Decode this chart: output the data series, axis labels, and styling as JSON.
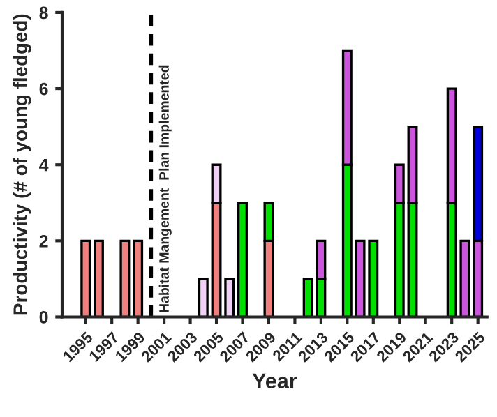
{
  "chart_data": {
    "type": "bar",
    "stacked": true,
    "xlabel": "Year",
    "ylabel": "Productivity (# of young fledged)",
    "x": [
      1995,
      1996,
      1997,
      1998,
      1999,
      2000,
      2001,
      2002,
      2003,
      2004,
      2005,
      2006,
      2007,
      2008,
      2009,
      2010,
      2011,
      2012,
      2013,
      2014,
      2015,
      2016,
      2017,
      2018,
      2019,
      2020,
      2021,
      2022,
      2023,
      2024,
      2025
    ],
    "series": [
      {
        "color": "#f08080",
        "values": [
          2,
          2,
          null,
          2,
          2,
          null,
          null,
          null,
          null,
          null,
          3,
          null,
          null,
          null,
          2,
          null,
          null,
          null,
          null,
          null,
          null,
          null,
          null,
          null,
          null,
          null,
          null,
          null,
          null,
          null,
          null
        ]
      },
      {
        "color": "#f0d0f4",
        "values": [
          null,
          null,
          null,
          null,
          null,
          null,
          null,
          null,
          null,
          1,
          1,
          1,
          null,
          null,
          null,
          null,
          null,
          null,
          null,
          null,
          null,
          null,
          null,
          null,
          null,
          null,
          null,
          null,
          null,
          null,
          null
        ]
      },
      {
        "color": "#00e000",
        "values": [
          null,
          null,
          null,
          null,
          null,
          null,
          null,
          null,
          null,
          null,
          null,
          null,
          3,
          null,
          1,
          null,
          null,
          1,
          1,
          null,
          4,
          null,
          2,
          null,
          3,
          3,
          null,
          null,
          3,
          null,
          null
        ]
      },
      {
        "color": "#cc55dd",
        "values": [
          null,
          null,
          null,
          null,
          null,
          null,
          null,
          null,
          null,
          null,
          null,
          null,
          null,
          null,
          null,
          null,
          null,
          null,
          1,
          null,
          3,
          2,
          null,
          null,
          1,
          2,
          null,
          null,
          3,
          2,
          2
        ]
      },
      {
        "color": "#0000dd",
        "values": [
          null,
          null,
          null,
          null,
          null,
          null,
          null,
          null,
          null,
          null,
          null,
          null,
          null,
          null,
          null,
          null,
          null,
          null,
          null,
          null,
          null,
          null,
          null,
          null,
          null,
          null,
          null,
          null,
          null,
          null,
          3
        ]
      }
    ],
    "xlim": [
      1993.2,
      2025.7
    ],
    "xticks": [
      1995,
      1997,
      1999,
      2001,
      2003,
      2005,
      2007,
      2009,
      2011,
      2013,
      2015,
      2017,
      2019,
      2021,
      2023,
      2025
    ],
    "ylim": [
      0,
      8
    ],
    "yticks": [
      0,
      2,
      4,
      6,
      8
    ],
    "ref_lines": [
      {
        "axis": "x",
        "value": 2000,
        "label": "Habitat Mangement  Plan Implemented",
        "color": "#000000",
        "line_style": "dashed"
      }
    ],
    "grid": false,
    "legend": false
  }
}
